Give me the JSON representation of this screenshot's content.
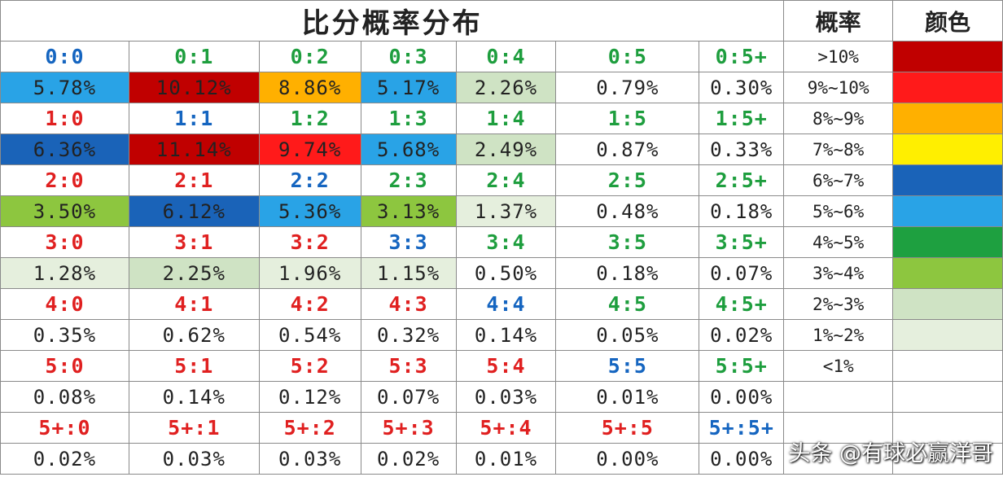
{
  "watermark": "头条 @有球必赢洋哥",
  "chart_data": {
    "type": "table",
    "title": "比分概率分布",
    "legend_header": "概率",
    "color_header": "颜色",
    "rows": [
      [
        {
          "score": "0:0",
          "score_color": "#1565c0",
          "prob": "5.78%",
          "fill": "#29a3e6"
        },
        {
          "score": "0:1",
          "score_color": "#1e9e3e",
          "prob": "10.12%",
          "fill": "#c00000"
        },
        {
          "score": "0:2",
          "score_color": "#1e9e3e",
          "prob": "8.86%",
          "fill": "#ffb000"
        },
        {
          "score": "0:3",
          "score_color": "#1e9e3e",
          "prob": "5.17%",
          "fill": "#29a3e6"
        },
        {
          "score": "0:4",
          "score_color": "#1e9e3e",
          "prob": "2.26%",
          "fill": "#cfe3c4"
        },
        {
          "score": "0:5",
          "score_color": "#1e9e3e",
          "prob": "0.79%",
          "fill": "#ffffff"
        },
        {
          "score": "0:5+",
          "score_color": "#1e9e3e",
          "prob": "0.30%",
          "fill": "#ffffff"
        }
      ],
      [
        {
          "score": "1:0",
          "score_color": "#e02020",
          "prob": "6.36%",
          "fill": "#1a63b8"
        },
        {
          "score": "1:1",
          "score_color": "#1565c0",
          "prob": "11.14%",
          "fill": "#c00000"
        },
        {
          "score": "1:2",
          "score_color": "#1e9e3e",
          "prob": "9.74%",
          "fill": "#ff1a1a"
        },
        {
          "score": "1:3",
          "score_color": "#1e9e3e",
          "prob": "5.68%",
          "fill": "#29a3e6"
        },
        {
          "score": "1:4",
          "score_color": "#1e9e3e",
          "prob": "2.49%",
          "fill": "#cfe3c4"
        },
        {
          "score": "1:5",
          "score_color": "#1e9e3e",
          "prob": "0.87%",
          "fill": "#ffffff"
        },
        {
          "score": "1:5+",
          "score_color": "#1e9e3e",
          "prob": "0.33%",
          "fill": "#ffffff"
        }
      ],
      [
        {
          "score": "2:0",
          "score_color": "#e02020",
          "prob": "3.50%",
          "fill": "#8dc63f"
        },
        {
          "score": "2:1",
          "score_color": "#e02020",
          "prob": "6.12%",
          "fill": "#1a63b8"
        },
        {
          "score": "2:2",
          "score_color": "#1565c0",
          "prob": "5.36%",
          "fill": "#29a3e6"
        },
        {
          "score": "2:3",
          "score_color": "#1e9e3e",
          "prob": "3.13%",
          "fill": "#8dc63f"
        },
        {
          "score": "2:4",
          "score_color": "#1e9e3e",
          "prob": "1.37%",
          "fill": "#e5efdd"
        },
        {
          "score": "2:5",
          "score_color": "#1e9e3e",
          "prob": "0.48%",
          "fill": "#ffffff"
        },
        {
          "score": "2:5+",
          "score_color": "#1e9e3e",
          "prob": "0.18%",
          "fill": "#ffffff"
        }
      ],
      [
        {
          "score": "3:0",
          "score_color": "#e02020",
          "prob": "1.28%",
          "fill": "#e5efdd"
        },
        {
          "score": "3:1",
          "score_color": "#e02020",
          "prob": "2.25%",
          "fill": "#cfe3c4"
        },
        {
          "score": "3:2",
          "score_color": "#e02020",
          "prob": "1.96%",
          "fill": "#e5efdd"
        },
        {
          "score": "3:3",
          "score_color": "#1565c0",
          "prob": "1.15%",
          "fill": "#e5efdd"
        },
        {
          "score": "3:4",
          "score_color": "#1e9e3e",
          "prob": "0.50%",
          "fill": "#ffffff"
        },
        {
          "score": "3:5",
          "score_color": "#1e9e3e",
          "prob": "0.18%",
          "fill": "#ffffff"
        },
        {
          "score": "3:5+",
          "score_color": "#1e9e3e",
          "prob": "0.07%",
          "fill": "#ffffff"
        }
      ],
      [
        {
          "score": "4:0",
          "score_color": "#e02020",
          "prob": "0.35%",
          "fill": "#ffffff"
        },
        {
          "score": "4:1",
          "score_color": "#e02020",
          "prob": "0.62%",
          "fill": "#ffffff"
        },
        {
          "score": "4:2",
          "score_color": "#e02020",
          "prob": "0.54%",
          "fill": "#ffffff"
        },
        {
          "score": "4:3",
          "score_color": "#e02020",
          "prob": "0.32%",
          "fill": "#ffffff"
        },
        {
          "score": "4:4",
          "score_color": "#1565c0",
          "prob": "0.14%",
          "fill": "#ffffff"
        },
        {
          "score": "4:5",
          "score_color": "#1e9e3e",
          "prob": "0.05%",
          "fill": "#ffffff"
        },
        {
          "score": "4:5+",
          "score_color": "#1e9e3e",
          "prob": "0.02%",
          "fill": "#ffffff"
        }
      ],
      [
        {
          "score": "5:0",
          "score_color": "#e02020",
          "prob": "0.08%",
          "fill": "#ffffff"
        },
        {
          "score": "5:1",
          "score_color": "#e02020",
          "prob": "0.14%",
          "fill": "#ffffff"
        },
        {
          "score": "5:2",
          "score_color": "#e02020",
          "prob": "0.12%",
          "fill": "#ffffff"
        },
        {
          "score": "5:3",
          "score_color": "#e02020",
          "prob": "0.07%",
          "fill": "#ffffff"
        },
        {
          "score": "5:4",
          "score_color": "#e02020",
          "prob": "0.03%",
          "fill": "#ffffff"
        },
        {
          "score": "5:5",
          "score_color": "#1565c0",
          "prob": "0.01%",
          "fill": "#ffffff"
        },
        {
          "score": "5:5+",
          "score_color": "#1e9e3e",
          "prob": "0.00%",
          "fill": "#ffffff"
        }
      ],
      [
        {
          "score": "5+:0",
          "score_color": "#e02020",
          "prob": "0.02%",
          "fill": "#ffffff"
        },
        {
          "score": "5+:1",
          "score_color": "#e02020",
          "prob": "0.03%",
          "fill": "#ffffff"
        },
        {
          "score": "5+:2",
          "score_color": "#e02020",
          "prob": "0.03%",
          "fill": "#ffffff"
        },
        {
          "score": "5+:3",
          "score_color": "#e02020",
          "prob": "0.02%",
          "fill": "#ffffff"
        },
        {
          "score": "5+:4",
          "score_color": "#e02020",
          "prob": "0.01%",
          "fill": "#ffffff"
        },
        {
          "score": "5+:5",
          "score_color": "#e02020",
          "prob": "0.00%",
          "fill": "#ffffff"
        },
        {
          "score": "5+:5+",
          "score_color": "#1565c0",
          "prob": "0.00%",
          "fill": "#ffffff"
        }
      ]
    ],
    "legend": [
      {
        "range": ">10%",
        "color": "#c00000"
      },
      {
        "range": "9%~10%",
        "color": "#ff1a1a"
      },
      {
        "range": "8%~9%",
        "color": "#ffb000"
      },
      {
        "range": "7%~8%",
        "color": "#ffef00"
      },
      {
        "range": "6%~7%",
        "color": "#1a63b8"
      },
      {
        "range": "5%~6%",
        "color": "#29a3e6"
      },
      {
        "range": "4%~5%",
        "color": "#1ea040"
      },
      {
        "range": "3%~4%",
        "color": "#8dc63f"
      },
      {
        "range": "2%~3%",
        "color": "#cfe3c4"
      },
      {
        "range": "1%~2%",
        "color": "#e5efdd"
      },
      {
        "range": "<1%",
        "color": "#ffffff"
      }
    ]
  }
}
